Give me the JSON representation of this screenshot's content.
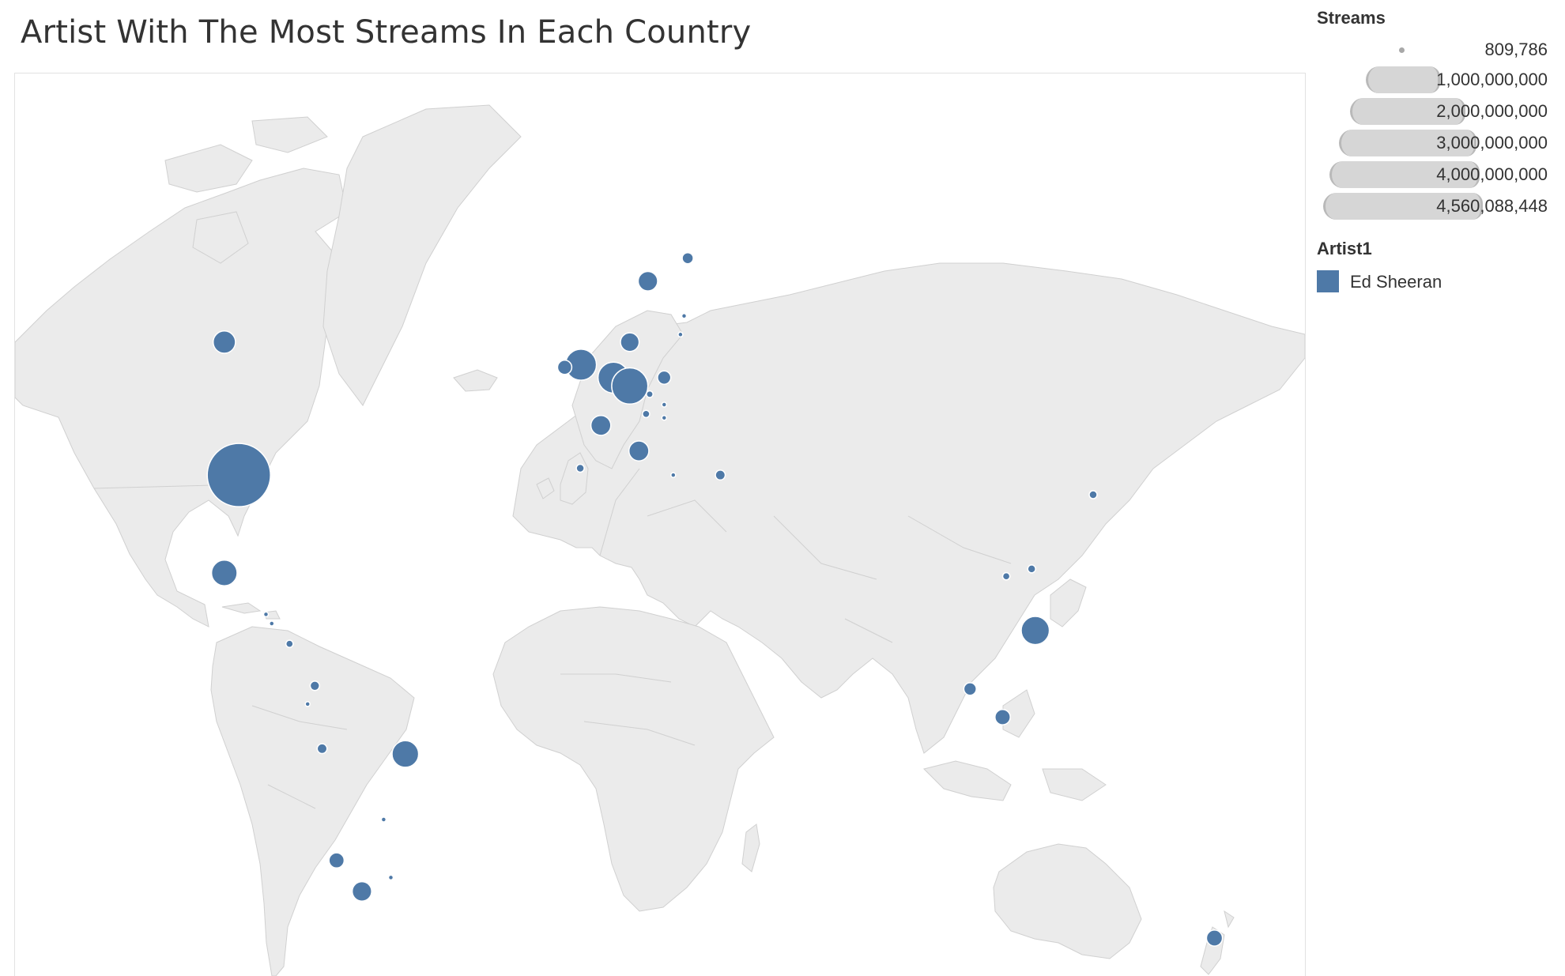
{
  "title": "Artist With The Most Streams In Each Country",
  "legend": {
    "size_title": "Streams",
    "size_levels": [
      "809,786",
      "1,000,000,000",
      "2,000,000,000",
      "3,000,000,000",
      "4,000,000,000",
      "4,560,088,448"
    ],
    "color_title": "Artist1",
    "color_entries": [
      {
        "label": "Ed Sheeran",
        "color": "#4e79a7"
      }
    ]
  },
  "map": {
    "land_color": "#ebebeb",
    "border_color": "#d0d0d0",
    "bubble_color": "#4e79a7",
    "bubble_outline": "#ffffff"
  },
  "chart_data": {
    "type": "scatter",
    "title": "Artist With The Most Streams In Each Country",
    "mark": "proportional symbol map",
    "size_field": "Streams",
    "color_field": "Artist1",
    "size_range": [
      809786,
      4560088448
    ],
    "series": [
      {
        "name": "Ed Sheeran",
        "points": [
          {
            "lon": -98,
            "lat": 39,
            "streams": 4560088448
          },
          {
            "lon": -102,
            "lat": 56,
            "streams": 570000000
          },
          {
            "lon": -102,
            "lat": 23,
            "streams": 750000000
          },
          {
            "lon": -90.5,
            "lat": 15.5,
            "streams": 20000000
          },
          {
            "lon": -88.9,
            "lat": 13.8,
            "streams": 15000000
          },
          {
            "lon": -84,
            "lat": 10,
            "streams": 60000000
          },
          {
            "lon": -77,
            "lat": 2,
            "streams": 100000000
          },
          {
            "lon": -79,
            "lat": -1.5,
            "streams": 25000000
          },
          {
            "lon": -75,
            "lat": -10,
            "streams": 110000000
          },
          {
            "lon": -52,
            "lat": -11,
            "streams": 800000000
          },
          {
            "lon": -71,
            "lat": -30,
            "streams": 260000000
          },
          {
            "lon": -64,
            "lat": -35,
            "streams": 430000000
          },
          {
            "lon": -58,
            "lat": -23,
            "streams": 15000000
          },
          {
            "lon": -56,
            "lat": -32.8,
            "streams": 15000000
          },
          {
            "lon": -3.5,
            "lat": 53.5,
            "streams": 1100000000
          },
          {
            "lon": -8,
            "lat": 53.2,
            "streams": 230000000
          },
          {
            "lon": -3.7,
            "lat": 40,
            "streams": 70000000
          },
          {
            "lon": 2,
            "lat": 46,
            "streams": 450000000
          },
          {
            "lon": 5.5,
            "lat": 52,
            "streams": 1100000000
          },
          {
            "lon": 10,
            "lat": 51,
            "streams": 1500000000
          },
          {
            "lon": 12.5,
            "lat": 42.5,
            "streams": 450000000
          },
          {
            "lon": 14.5,
            "lat": 47.5,
            "streams": 60000000
          },
          {
            "lon": 15.5,
            "lat": 50,
            "streams": 50000000
          },
          {
            "lon": 19.5,
            "lat": 52,
            "streams": 200000000
          },
          {
            "lon": 19.5,
            "lat": 47,
            "streams": 20000000
          },
          {
            "lon": 19.5,
            "lat": 48.7,
            "streams": 12000000
          },
          {
            "lon": 10,
            "lat": 56,
            "streams": 400000000
          },
          {
            "lon": 15,
            "lat": 62,
            "streams": 430000000
          },
          {
            "lon": 26,
            "lat": 64,
            "streams": 140000000
          },
          {
            "lon": 25,
            "lat": 58.7,
            "streams": 8000000
          },
          {
            "lon": 24,
            "lat": 56.8,
            "streams": 6000000
          },
          {
            "lon": 22,
            "lat": 39,
            "streams": 10000000
          },
          {
            "lon": 35,
            "lat": 39,
            "streams": 110000000
          },
          {
            "lon": 138,
            "lat": 36,
            "streams": 70000000
          },
          {
            "lon": 114,
            "lat": 22.4,
            "streams": 60000000
          },
          {
            "lon": 121,
            "lat": 23.7,
            "streams": 70000000
          },
          {
            "lon": 122,
            "lat": 12.5,
            "streams": 900000000
          },
          {
            "lon": 104,
            "lat": 1.4,
            "streams": 180000000
          },
          {
            "lon": 113,
            "lat": -4,
            "streams": 270000000
          },
          {
            "lon": 171.5,
            "lat": -42,
            "streams": 290000000
          }
        ]
      }
    ]
  }
}
